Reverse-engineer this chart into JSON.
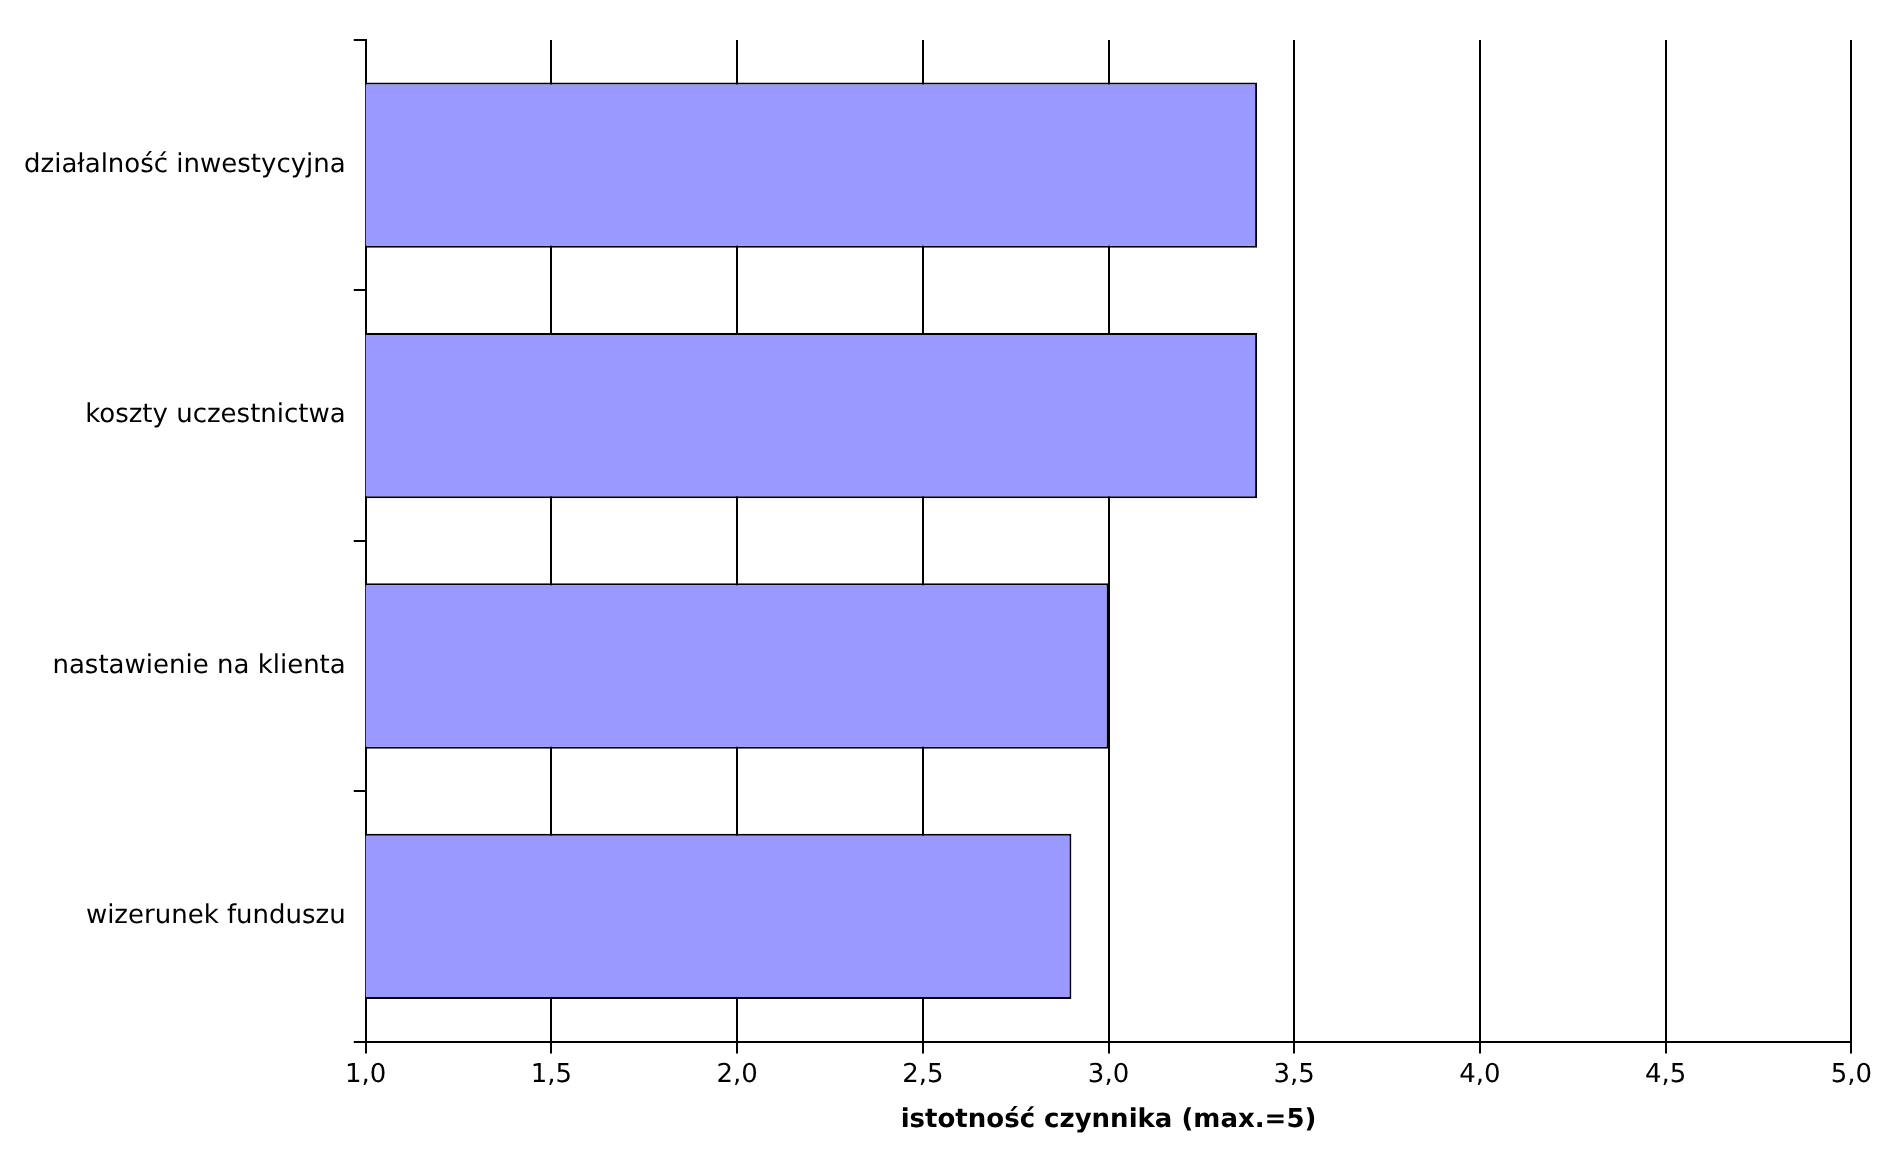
{
  "chart_data": {
    "type": "bar",
    "orientation": "horizontal",
    "xlabel": "istotność czynnika (max.=5)",
    "categories": [
      "działalność inwestycyjna",
      "koszty uczestnictwa",
      "nastawienie na klienta",
      "wizerunek funduszu"
    ],
    "values": [
      3.4,
      3.4,
      3.0,
      2.9
    ],
    "color": "#9999ff",
    "xlim": [
      1,
      5
    ],
    "xticks": [
      {
        "value": 1,
        "label": "1,0"
      },
      {
        "value": 1.5,
        "label": "1,5"
      },
      {
        "value": 2,
        "label": "2,0"
      },
      {
        "value": 2.5,
        "label": "2,5"
      },
      {
        "value": 3,
        "label": "3,0"
      },
      {
        "value": 3.5,
        "label": "3,5"
      },
      {
        "value": 4,
        "label": "4,0"
      },
      {
        "value": 4.5,
        "label": "4,5"
      },
      {
        "value": 5,
        "label": "5,0"
      }
    ],
    "grid": "x",
    "legend": false
  }
}
